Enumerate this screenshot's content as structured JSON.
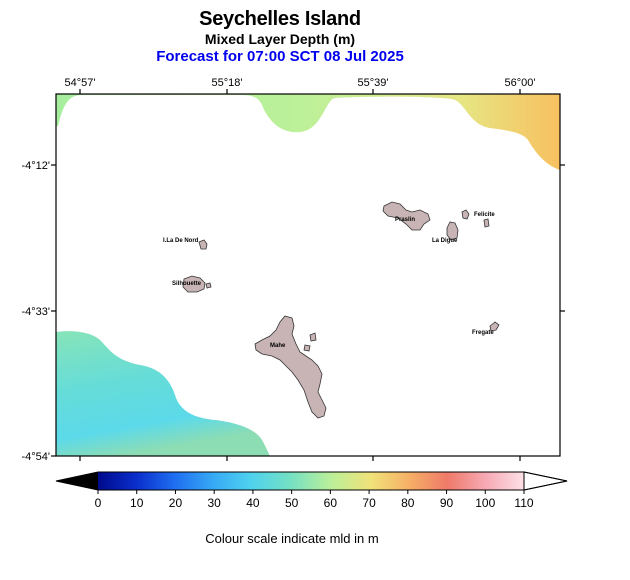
{
  "title": {
    "main": "Seychelles Island",
    "sub": "Mixed Layer Depth (m)",
    "forecast": "Forecast for  07:00 SCT 08 Jul 2025",
    "forecast_color": "#0000ee"
  },
  "map": {
    "lon_labels": [
      "54°57'",
      "55°18'",
      "55°39'",
      "56°00'"
    ],
    "lat_labels": [
      "-4°12'",
      "-4°33'",
      "-4°54'"
    ],
    "islands": [
      {
        "name": "Praslin"
      },
      {
        "name": "Felicite"
      },
      {
        "name": "La Digue"
      },
      {
        "name": "I.La De Nord"
      },
      {
        "name": "Silhouette"
      },
      {
        "name": "Mahe"
      },
      {
        "name": "Fregate"
      }
    ],
    "land_color": "#c8b4b4",
    "ocean_color": "#ffffff"
  },
  "colorbar": {
    "ticks": [
      "0",
      "10",
      "20",
      "30",
      "40",
      "50",
      "60",
      "70",
      "80",
      "90",
      "100",
      "110"
    ],
    "colors": [
      "#000a8c",
      "#0a2ecc",
      "#1f6ef0",
      "#37a9f5",
      "#4fd2ee",
      "#74e0c4",
      "#bdef98",
      "#f0e27a",
      "#f6b066",
      "#ef7a6a",
      "#f6a9b4",
      "#fde0e6"
    ],
    "note": "Colour scale indicate mld in m"
  }
}
